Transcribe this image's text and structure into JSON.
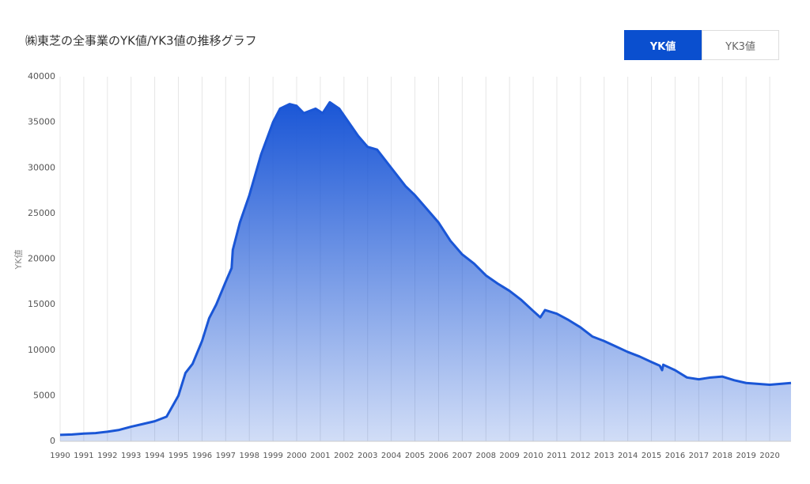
{
  "chart_data": {
    "type": "area",
    "title": "㈱東芝の全事業のYK値/YK3値の推移グラフ",
    "y_label": "YK値",
    "color": "#1a56d6",
    "x": [
      1990,
      1990.5,
      1991,
      1991.5,
      1992,
      1992.5,
      1993,
      1993.5,
      1994,
      1994.5,
      1995,
      1995.3,
      1995.6,
      1996,
      1996.3,
      1996.6,
      1997,
      1997.25,
      1997.3,
      1997.6,
      1998,
      1998.5,
      1999,
      1999.3,
      1999.7,
      2000,
      2000.3,
      2000.8,
      2001.1,
      2001.4,
      2001.8,
      2002.2,
      2002.6,
      2003,
      2003.4,
      2004,
      2004.6,
      2005,
      2005.5,
      2006,
      2006.5,
      2007,
      2007.5,
      2008,
      2008.5,
      2009,
      2009.5,
      2010,
      2010.3,
      2010.5,
      2011,
      2011.5,
      2012,
      2012.5,
      2013,
      2013.5,
      2014,
      2014.5,
      2015,
      2015.35,
      2015.45,
      2015.5,
      2016,
      2016.5,
      2017,
      2017.5,
      2018,
      2018.5,
      2019,
      2019.5,
      2020,
      2020.9
    ],
    "values": [
      700,
      750,
      850,
      900,
      1050,
      1250,
      1600,
      1900,
      2200,
      2700,
      5000,
      7500,
      8500,
      11000,
      13500,
      15000,
      17500,
      19000,
      21000,
      24000,
      27000,
      31500,
      35000,
      36500,
      37000,
      36800,
      36000,
      36500,
      36000,
      37200,
      36500,
      35000,
      33500,
      32300,
      32000,
      30000,
      28000,
      27000,
      25500,
      24000,
      22000,
      20500,
      19500,
      18200,
      17300,
      16500,
      15500,
      14300,
      13600,
      14400,
      14000,
      13300,
      12500,
      11500,
      11000,
      10400,
      9800,
      9300,
      8700,
      8300,
      7800,
      8400,
      7800,
      7000,
      6800,
      7000,
      7100,
      6700,
      6400,
      6300,
      6200,
      6400
    ],
    "xlim": [
      1990,
      2020.9
    ],
    "ylim": [
      0,
      40000
    ],
    "xticks": [
      1990,
      1991,
      1992,
      1993,
      1994,
      1995,
      1996,
      1997,
      1998,
      1999,
      2000,
      2001,
      2002,
      2003,
      2004,
      2005,
      2006,
      2007,
      2008,
      2009,
      2010,
      2011,
      2012,
      2013,
      2014,
      2015,
      2016,
      2017,
      2018,
      2019,
      2020
    ],
    "yticks": [
      0,
      5000,
      10000,
      15000,
      20000,
      25000,
      30000,
      35000,
      40000
    ],
    "grid": true
  },
  "ui": {
    "buttons": [
      "YK値",
      "YK3値"
    ]
  }
}
